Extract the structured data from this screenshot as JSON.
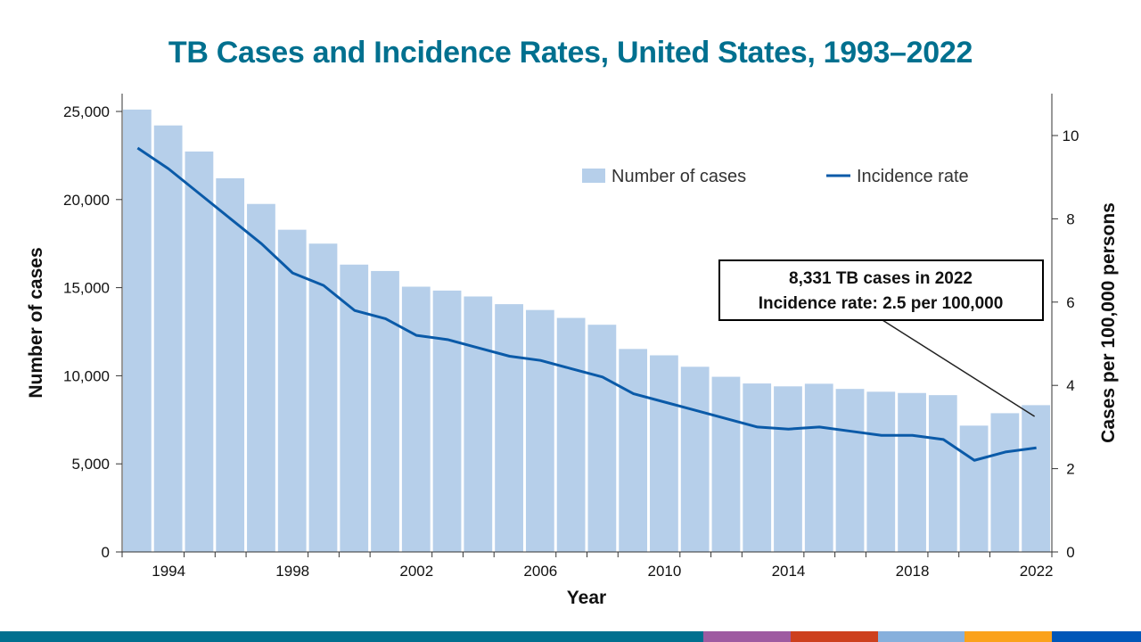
{
  "title": "TB Cases and Incidence Rates, United States, 1993–2022",
  "chart_data": {
    "type": "bar+line",
    "title": "TB Cases and Incidence Rates, United States, 1993–2022",
    "xlabel": "Year",
    "ylabel": "Number of cases",
    "y2label": "Cases per 100,000 persons",
    "x": [
      1993,
      1994,
      1995,
      1996,
      1997,
      1998,
      1999,
      2000,
      2001,
      2002,
      2003,
      2004,
      2005,
      2006,
      2007,
      2008,
      2009,
      2010,
      2011,
      2012,
      2013,
      2014,
      2015,
      2016,
      2017,
      2018,
      2019,
      2020,
      2021,
      2022
    ],
    "xticks": [
      "1994",
      "1998",
      "2002",
      "2006",
      "2010",
      "2014",
      "2018",
      "2022"
    ],
    "ylim": [
      0,
      25000
    ],
    "yticks": [
      "0",
      "5,000",
      "10,000",
      "15,000",
      "20,000",
      "25,000"
    ],
    "y2lim": [
      0,
      11
    ],
    "y2ticks": [
      "0",
      "2",
      "4",
      "6",
      "8",
      "10"
    ],
    "legend_position": "top-right",
    "grid": false,
    "series": [
      {
        "name": "Number of cases",
        "type": "bar",
        "axis": "left",
        "color": "#b6cfea",
        "values": [
          25107,
          24206,
          22727,
          21210,
          19751,
          18287,
          17499,
          16308,
          15945,
          15055,
          14835,
          14499,
          14063,
          13732,
          13282,
          12895,
          11520,
          11159,
          10510,
          9941,
          9561,
          9398,
          9547,
          9252,
          9093,
          9021,
          8900,
          7170,
          7874,
          8331
        ]
      },
      {
        "name": "Incidence rate",
        "type": "line",
        "axis": "right",
        "color": "#0a5aa8",
        "values": [
          9.7,
          9.2,
          8.6,
          8.0,
          7.4,
          6.7,
          6.4,
          5.8,
          5.6,
          5.2,
          5.1,
          4.9,
          4.7,
          4.6,
          4.4,
          4.2,
          3.8,
          3.6,
          3.4,
          3.2,
          3.0,
          2.95,
          3.0,
          2.9,
          2.8,
          2.8,
          2.7,
          2.2,
          2.4,
          2.5
        ]
      }
    ],
    "annotation": {
      "lines": [
        "8,331 TB cases in 2022",
        "Incidence rate: 2.5 per 100,000"
      ],
      "target_year": 2022
    }
  },
  "footer_stripe_colors": [
    "#00708f",
    "#9e5ba1",
    "#cd401e",
    "#87b0dc",
    "#fba21b",
    "#0057b8"
  ]
}
